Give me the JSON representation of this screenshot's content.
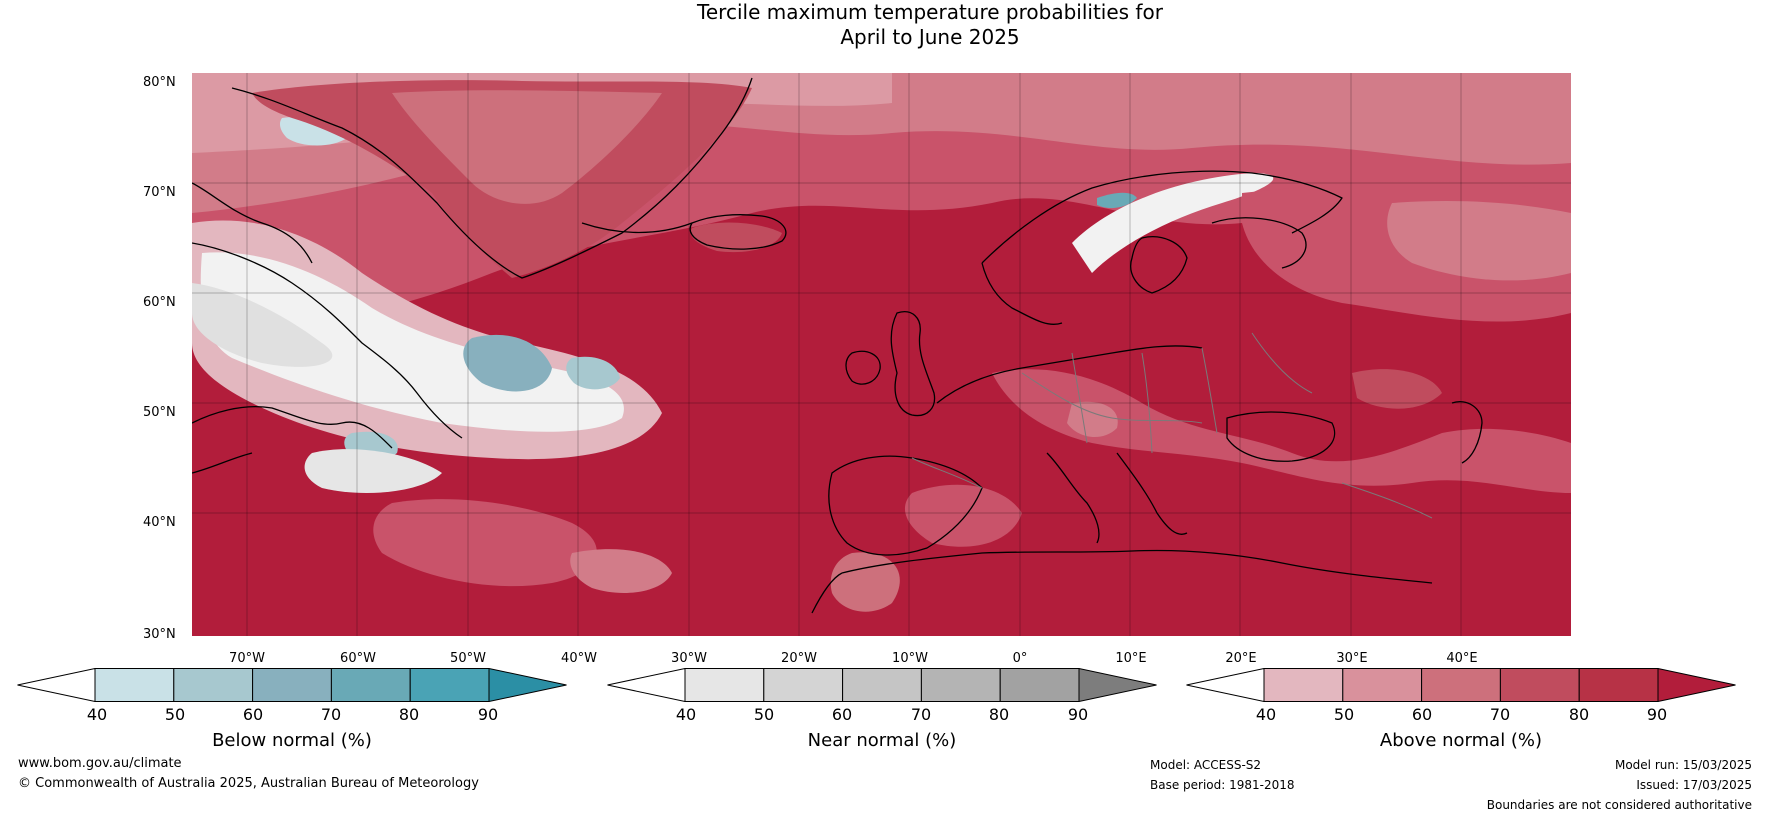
{
  "title": {
    "line1": "Tercile maximum temperature probabilities for",
    "line2": "April to June 2025"
  },
  "map": {
    "lat_labels": [
      "80°N",
      "70°N",
      "60°N",
      "50°N",
      "40°N",
      "30°N"
    ],
    "lon_labels": [
      "70°W",
      "60°W",
      "50°W",
      "40°W",
      "30°W",
      "20°W",
      "10°W",
      "0°",
      "10°E",
      "20°E",
      "30°E",
      "40°E"
    ]
  },
  "colorbars": [
    {
      "title": "Below normal (%)",
      "ticks": [
        "40",
        "50",
        "60",
        "70",
        "80",
        "90"
      ],
      "colors": [
        "#ffffff",
        "#c9e1e7",
        "#a7c8cf",
        "#88b0be",
        "#69a9b6",
        "#4aa3b5",
        "#2b8fa5"
      ]
    },
    {
      "title": "Near normal (%)",
      "ticks": [
        "40",
        "50",
        "60",
        "70",
        "80",
        "90"
      ],
      "colors": [
        "#ffffff",
        "#e6e6e6",
        "#d4d4d4",
        "#c5c5c5",
        "#b4b4b4",
        "#a2a2a2",
        "#7d7d7d"
      ]
    },
    {
      "title": "Above normal (%)",
      "ticks": [
        "40",
        "50",
        "60",
        "70",
        "80",
        "90"
      ],
      "colors": [
        "#ffffff",
        "#e3b7bf",
        "#d9919c",
        "#cd707c",
        "#c04c5e",
        "#b73246",
        "#b21d3b"
      ]
    }
  ],
  "footer": {
    "website": "www.bom.gov.au/climate",
    "copyright": "© Commonwealth of Australia 2025, Australian Bureau of Meteorology",
    "model": "Model: ACCESS-S2",
    "base_period": "Base period: 1981-2018",
    "model_run": "Model run: 15/03/2025",
    "issued": "Issued: 17/03/2025",
    "disclaimer": "Boundaries are not considered authoritative"
  }
}
